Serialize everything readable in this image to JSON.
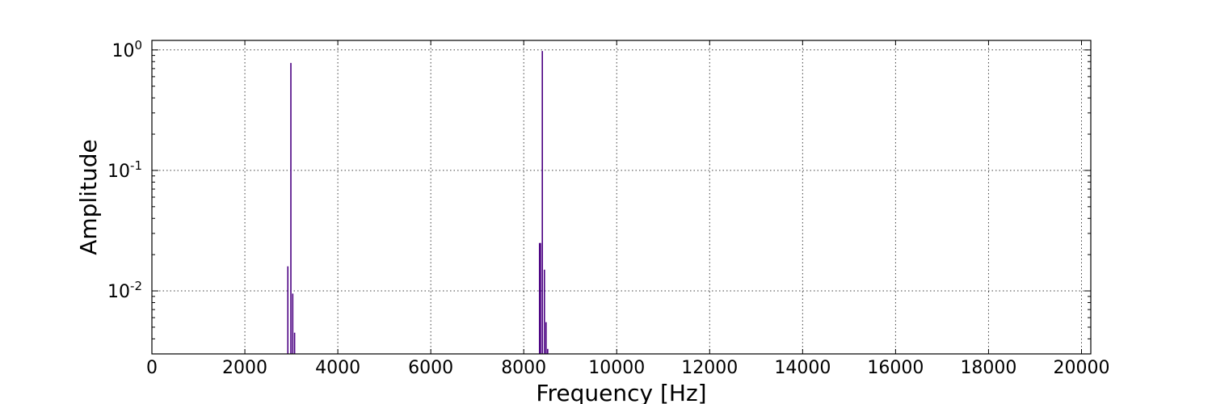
{
  "chart_data": {
    "type": "bar",
    "xlabel": "Frequency [Hz]",
    "ylabel": "Amplitude",
    "xlim": [
      0,
      20200
    ],
    "ylim": [
      0.003,
      1.2
    ],
    "yscale": "log",
    "grid": true,
    "color": "#4b0082",
    "x_ticks": [
      0,
      2000,
      4000,
      6000,
      8000,
      10000,
      12000,
      14000,
      16000,
      18000,
      20000
    ],
    "x_tick_labels": [
      "0",
      "2000",
      "4000",
      "6000",
      "8000",
      "10000",
      "12000",
      "14000",
      "16000",
      "18000",
      "20000"
    ],
    "y_ticks": [
      {
        "value": 1,
        "base": "10",
        "exp": "0"
      },
      {
        "value": 0.1,
        "base": "10",
        "exp": "-1"
      },
      {
        "value": 0.01,
        "base": "10",
        "exp": "-2"
      }
    ],
    "x": [
      2925,
      2990,
      3030,
      3070,
      8340,
      8360,
      8400,
      8445,
      8480,
      8515
    ],
    "values": [
      0.016,
      0.78,
      0.0095,
      0.0045,
      0.025,
      0.025,
      0.98,
      0.015,
      0.0055,
      0.0033
    ]
  }
}
